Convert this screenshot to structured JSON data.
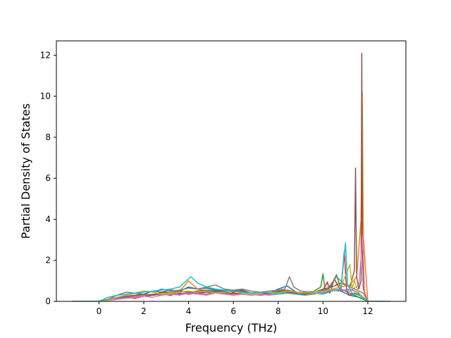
{
  "chart_data": {
    "type": "line",
    "title": "",
    "xlabel": "Frequency (THz)",
    "ylabel": "Partial Density of States",
    "xlim": [
      -1.9,
      13.7
    ],
    "ylim": [
      0,
      12.7
    ],
    "x_ticks": [
      0,
      2,
      4,
      6,
      8,
      10,
      12
    ],
    "y_ticks": [
      0,
      2,
      4,
      6,
      8,
      10,
      12
    ],
    "x_tick_labels": [
      "0",
      "2",
      "4",
      "6",
      "8",
      "10",
      "12"
    ],
    "y_tick_labels": [
      "0",
      "2",
      "4",
      "6",
      "8",
      "10",
      "12"
    ],
    "grid": false,
    "legend": "none",
    "series": [
      {
        "color": "#1f77b4",
        "x": [
          -1.2,
          0.0,
          0.4,
          0.8,
          1.2,
          1.6,
          2.0,
          2.4,
          2.8,
          3.2,
          3.6,
          4.0,
          4.4,
          4.8,
          5.2,
          5.6,
          6.0,
          6.4,
          6.8,
          7.2,
          7.6,
          8.0,
          8.4,
          8.8,
          9.2,
          9.6,
          10.0,
          10.4,
          10.8,
          11.2,
          11.6,
          12.0,
          13.0
        ],
        "y": [
          0,
          0,
          0.1,
          0.2,
          0.3,
          0.4,
          0.35,
          0.5,
          0.45,
          0.55,
          0.5,
          0.7,
          0.6,
          0.65,
          0.55,
          0.5,
          0.45,
          0.5,
          0.4,
          0.45,
          0.4,
          0.6,
          0.75,
          0.45,
          0.35,
          0.5,
          0.4,
          0.55,
          0.5,
          0.3,
          0.2,
          0.0,
          0
        ]
      },
      {
        "color": "#ff7f0e",
        "x": [
          -1.2,
          0.0,
          0.4,
          0.8,
          1.2,
          1.6,
          2.0,
          2.4,
          2.8,
          3.2,
          3.6,
          4.0,
          4.4,
          4.8,
          5.2,
          5.6,
          6.0,
          6.4,
          6.8,
          7.2,
          7.6,
          8.0,
          8.4,
          8.8,
          9.2,
          9.6,
          10.0,
          10.4,
          10.8,
          11.2,
          11.5,
          11.7,
          11.75,
          11.8,
          12.0,
          13.0
        ],
        "y": [
          0,
          0,
          0.05,
          0.15,
          0.2,
          0.25,
          0.3,
          0.35,
          0.4,
          0.45,
          0.5,
          1.0,
          0.6,
          0.5,
          0.45,
          0.4,
          0.35,
          0.4,
          0.35,
          0.3,
          0.35,
          0.45,
          0.5,
          0.4,
          0.3,
          0.35,
          0.5,
          0.6,
          0.7,
          0.8,
          1.2,
          4.0,
          10.2,
          3.2,
          0.0,
          0
        ]
      },
      {
        "color": "#2ca02c",
        "x": [
          -1.2,
          0.0,
          0.4,
          0.8,
          1.2,
          1.6,
          2.0,
          2.4,
          2.8,
          3.2,
          3.6,
          4.0,
          4.4,
          4.8,
          5.2,
          5.6,
          6.0,
          6.4,
          6.8,
          7.2,
          7.6,
          8.0,
          8.4,
          8.8,
          9.2,
          9.6,
          9.9,
          10.0,
          10.1,
          10.4,
          10.6,
          10.8,
          11.0,
          11.2,
          11.6,
          12.0,
          13.0
        ],
        "y": [
          0,
          0,
          0.05,
          0.1,
          0.15,
          0.2,
          0.25,
          0.3,
          0.35,
          0.4,
          0.35,
          0.45,
          0.4,
          0.5,
          0.45,
          0.4,
          0.5,
          0.45,
          0.4,
          0.35,
          0.4,
          0.45,
          0.5,
          0.45,
          0.4,
          0.5,
          0.7,
          1.35,
          0.5,
          0.8,
          1.3,
          0.6,
          0.5,
          0.4,
          0.2,
          0.0,
          0
        ]
      },
      {
        "color": "#d62728",
        "x": [
          -1.2,
          0.0,
          0.4,
          0.8,
          1.2,
          1.6,
          2.0,
          2.4,
          2.8,
          3.2,
          3.6,
          4.0,
          4.4,
          4.8,
          5.2,
          5.6,
          6.0,
          6.4,
          6.8,
          7.2,
          7.6,
          8.0,
          8.4,
          8.8,
          9.2,
          9.6,
          10.0,
          10.2,
          10.3,
          10.5,
          10.8,
          10.95,
          11.05,
          11.15,
          11.4,
          11.7,
          12.0,
          13.0
        ],
        "y": [
          0,
          0,
          0.05,
          0.1,
          0.2,
          0.15,
          0.25,
          0.3,
          0.35,
          0.3,
          0.4,
          0.35,
          0.4,
          0.45,
          0.4,
          0.35,
          0.4,
          0.35,
          0.3,
          0.35,
          0.4,
          0.35,
          0.45,
          0.4,
          0.35,
          0.45,
          0.55,
          0.95,
          0.4,
          1.1,
          0.5,
          2.45,
          0.6,
          0.3,
          0.4,
          0.3,
          0.0,
          0
        ]
      },
      {
        "color": "#9467bd",
        "x": [
          -1.2,
          0.0,
          0.4,
          0.8,
          1.2,
          1.6,
          2.0,
          2.4,
          2.8,
          3.2,
          3.6,
          4.0,
          4.4,
          4.8,
          5.2,
          5.6,
          6.0,
          6.4,
          6.8,
          7.2,
          7.6,
          8.0,
          8.4,
          8.8,
          9.2,
          9.6,
          10.0,
          10.4,
          10.8,
          11.2,
          11.6,
          12.0,
          13.0
        ],
        "y": [
          0,
          0,
          0.1,
          0.15,
          0.2,
          0.3,
          0.25,
          0.35,
          0.3,
          0.4,
          0.35,
          0.45,
          0.4,
          0.35,
          0.45,
          0.4,
          0.3,
          0.35,
          0.4,
          0.3,
          0.35,
          0.45,
          0.4,
          0.35,
          0.45,
          0.5,
          0.4,
          0.6,
          0.5,
          0.6,
          0.4,
          0.0,
          0
        ]
      },
      {
        "color": "#8c564b",
        "x": [
          -1.2,
          0.0,
          0.4,
          0.8,
          1.2,
          1.6,
          2.0,
          2.4,
          2.8,
          3.2,
          3.6,
          4.0,
          4.4,
          4.8,
          5.2,
          5.6,
          6.0,
          6.4,
          6.8,
          7.2,
          7.6,
          8.0,
          8.4,
          8.8,
          9.2,
          9.6,
          10.0,
          10.4,
          10.8,
          11.2,
          11.4,
          11.45,
          11.5,
          11.6,
          11.7,
          11.73,
          11.76,
          11.8,
          12.0,
          13.0
        ],
        "y": [
          0,
          0,
          0.05,
          0.2,
          0.25,
          0.3,
          0.35,
          0.3,
          0.45,
          0.4,
          0.5,
          0.45,
          0.5,
          0.55,
          0.5,
          0.45,
          0.5,
          0.55,
          0.4,
          0.45,
          0.4,
          0.5,
          0.55,
          0.45,
          0.4,
          0.45,
          0.6,
          0.7,
          0.9,
          0.7,
          1.5,
          6.5,
          1.2,
          0.6,
          1.0,
          12.1,
          2.5,
          0.6,
          0.0,
          0
        ]
      },
      {
        "color": "#e377c2",
        "x": [
          -1.2,
          0.0,
          0.4,
          0.8,
          1.2,
          1.6,
          2.0,
          2.4,
          2.8,
          3.2,
          3.6,
          4.0,
          4.4,
          4.8,
          5.2,
          5.6,
          6.0,
          6.4,
          6.8,
          7.2,
          7.6,
          8.0,
          8.4,
          8.8,
          9.2,
          9.6,
          10.0,
          10.4,
          10.8,
          11.2,
          11.6,
          11.78,
          11.85,
          12.0,
          13.0
        ],
        "y": [
          0,
          0,
          0.05,
          0.1,
          0.15,
          0.2,
          0.25,
          0.2,
          0.3,
          0.35,
          0.3,
          0.4,
          0.35,
          0.3,
          0.4,
          0.35,
          0.3,
          0.35,
          0.3,
          0.35,
          0.3,
          0.35,
          0.4,
          0.35,
          0.3,
          0.45,
          0.5,
          0.55,
          0.6,
          0.5,
          0.8,
          3.2,
          0.5,
          0.0,
          0
        ]
      },
      {
        "color": "#7f7f7f",
        "x": [
          -1.2,
          0.0,
          0.4,
          0.8,
          1.2,
          1.6,
          2.0,
          2.4,
          2.8,
          3.2,
          3.6,
          4.0,
          4.4,
          4.8,
          5.2,
          5.6,
          6.0,
          6.4,
          6.8,
          7.2,
          7.6,
          8.0,
          8.3,
          8.5,
          8.7,
          9.0,
          9.4,
          9.8,
          10.2,
          10.6,
          11.0,
          11.4,
          11.8,
          12.0,
          13.0
        ],
        "y": [
          0,
          0,
          0.1,
          0.3,
          0.45,
          0.4,
          0.5,
          0.45,
          0.6,
          0.5,
          0.55,
          0.65,
          0.6,
          0.7,
          0.8,
          0.6,
          0.55,
          0.6,
          0.5,
          0.45,
          0.5,
          0.55,
          0.6,
          1.2,
          0.7,
          0.5,
          0.45,
          0.5,
          0.6,
          1.2,
          0.8,
          0.6,
          0.4,
          0.0,
          0
        ]
      },
      {
        "color": "#bcbd22",
        "x": [
          -1.2,
          0.0,
          0.4,
          0.8,
          1.2,
          1.6,
          2.0,
          2.4,
          2.8,
          3.2,
          3.6,
          4.0,
          4.4,
          4.8,
          5.2,
          5.6,
          6.0,
          6.4,
          6.8,
          7.2,
          7.6,
          8.0,
          8.4,
          8.8,
          9.2,
          9.6,
          10.0,
          10.4,
          10.8,
          11.2,
          11.3,
          11.4,
          11.6,
          12.0,
          13.0
        ],
        "y": [
          0,
          0,
          0.05,
          0.2,
          0.3,
          0.4,
          0.5,
          0.45,
          0.35,
          0.4,
          0.45,
          0.5,
          0.45,
          0.5,
          0.4,
          0.45,
          0.5,
          0.4,
          0.35,
          0.4,
          0.45,
          0.4,
          0.5,
          0.45,
          0.4,
          0.5,
          0.45,
          0.6,
          0.7,
          1.8,
          0.6,
          1.0,
          0.4,
          0.0,
          0
        ]
      },
      {
        "color": "#17becf",
        "x": [
          -1.2,
          0.0,
          0.4,
          0.8,
          1.2,
          1.6,
          2.0,
          2.4,
          2.8,
          3.2,
          3.6,
          4.0,
          4.1,
          4.4,
          4.8,
          5.2,
          5.6,
          6.0,
          6.4,
          6.8,
          7.2,
          7.6,
          8.0,
          8.4,
          8.8,
          9.2,
          9.6,
          10.0,
          10.4,
          10.8,
          11.0,
          11.1,
          11.3,
          11.6,
          12.0,
          13.0
        ],
        "y": [
          0,
          0,
          0.2,
          0.3,
          0.35,
          0.4,
          0.45,
          0.5,
          0.55,
          0.6,
          0.7,
          1.1,
          1.2,
          0.9,
          0.7,
          0.6,
          0.55,
          0.5,
          0.45,
          0.4,
          0.45,
          0.4,
          0.35,
          0.4,
          0.35,
          0.3,
          0.4,
          0.35,
          0.5,
          0.6,
          2.85,
          0.8,
          0.4,
          0.3,
          0.0,
          0
        ]
      }
    ]
  }
}
